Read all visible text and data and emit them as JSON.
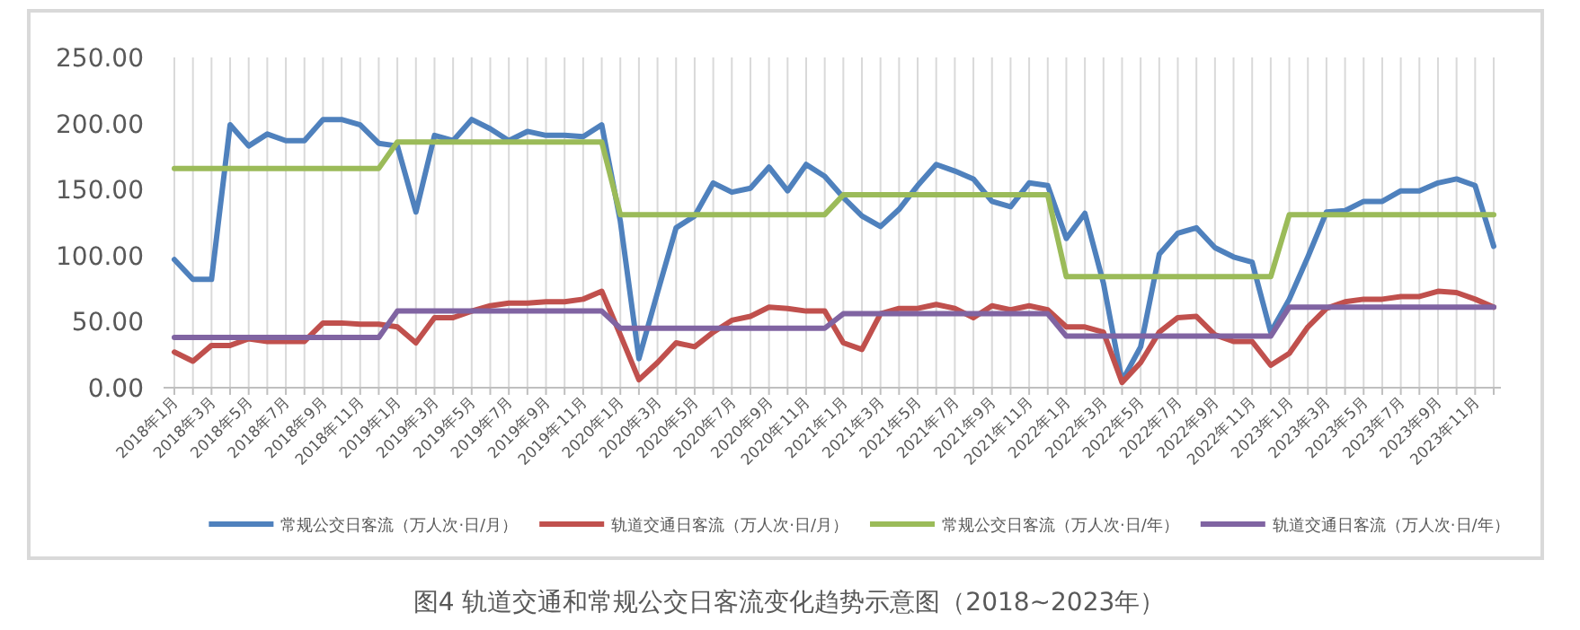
{
  "chart_data": {
    "type": "line",
    "title": "图4  轨道交通和常规公交日客流变化趋势示意图（2018~2023年）",
    "categories": [
      "2018年1月",
      null,
      "2018年3月",
      null,
      "2018年5月",
      null,
      "2018年7月",
      null,
      "2018年9月",
      null,
      "2018年11月",
      null,
      "2019年1月",
      null,
      "2019年3月",
      null,
      "2019年5月",
      null,
      "2019年7月",
      null,
      "2019年9月",
      null,
      "2019年11月",
      null,
      "2020年1月",
      null,
      "2020年3月",
      null,
      "2020年5月",
      null,
      "2020年7月",
      null,
      "2020年9月",
      null,
      "2020年11月",
      null,
      "2021年1月",
      null,
      "2021年3月",
      null,
      "2021年5月",
      null,
      "2021年7月",
      null,
      "2021年9月",
      null,
      "2021年11月",
      null,
      "2022年1月",
      null,
      "2022年3月",
      null,
      "2022年5月",
      null,
      "2022年7月",
      null,
      "2022年9月",
      null,
      "2022年11月",
      null,
      "2023年1月",
      null,
      "2023年3月",
      null,
      "2023年5月",
      null,
      "2023年7月",
      null,
      "2023年9月",
      null,
      "2023年11月",
      null
    ],
    "series": [
      {
        "name": "常规公交日客流（万人次·日/月）",
        "color": "#4f81bd",
        "values": [
          97,
          82,
          82,
          199,
          183,
          192,
          187,
          187,
          203,
          203,
          199,
          185,
          183,
          133,
          191,
          187,
          203,
          196,
          187,
          194,
          191,
          191,
          190,
          199,
          126,
          22,
          72,
          121,
          130,
          155,
          148,
          151,
          167,
          149,
          169,
          160,
          144,
          130,
          122,
          135,
          153,
          169,
          164,
          158,
          141,
          137,
          155,
          153,
          113,
          132,
          79,
          5,
          31,
          101,
          117,
          121,
          106,
          99,
          95,
          42,
          67,
          99,
          133,
          134,
          141,
          141,
          149,
          149,
          155,
          158,
          153,
          107
        ]
      },
      {
        "name": "轨道交通日客流（万人次·日/月）",
        "color": "#c0504d",
        "values": [
          27,
          20,
          32,
          32,
          37,
          35,
          35,
          35,
          49,
          49,
          48,
          48,
          46,
          34,
          53,
          53,
          58,
          62,
          64,
          64,
          65,
          65,
          67,
          73,
          40,
          6,
          19,
          34,
          31,
          42,
          51,
          54,
          61,
          60,
          58,
          58,
          34,
          29,
          56,
          60,
          60,
          63,
          60,
          53,
          62,
          59,
          62,
          59,
          46,
          46,
          42,
          4,
          19,
          42,
          53,
          54,
          40,
          35,
          35,
          17,
          26,
          46,
          60,
          65,
          67,
          67,
          69,
          69,
          73,
          72,
          67,
          61
        ]
      },
      {
        "name": "常规公交日客流（万人次·日/年）",
        "color": "#9bbb59",
        "values": [
          166,
          166,
          166,
          166,
          166,
          166,
          166,
          166,
          166,
          166,
          166,
          166,
          186,
          186,
          186,
          186,
          186,
          186,
          186,
          186,
          186,
          186,
          186,
          186,
          131,
          131,
          131,
          131,
          131,
          131,
          131,
          131,
          131,
          131,
          131,
          131,
          146,
          146,
          146,
          146,
          146,
          146,
          146,
          146,
          146,
          146,
          146,
          146,
          84,
          84,
          84,
          84,
          84,
          84,
          84,
          84,
          84,
          84,
          84,
          84,
          131,
          131,
          131,
          131,
          131,
          131,
          131,
          131,
          131,
          131,
          131,
          131
        ]
      },
      {
        "name": "轨道交通日客流（万人次·日/年）",
        "color": "#8064a2",
        "values": [
          38,
          38,
          38,
          38,
          38,
          38,
          38,
          38,
          38,
          38,
          38,
          38,
          58,
          58,
          58,
          58,
          58,
          58,
          58,
          58,
          58,
          58,
          58,
          58,
          45,
          45,
          45,
          45,
          45,
          45,
          45,
          45,
          45,
          45,
          45,
          45,
          56,
          56,
          56,
          56,
          56,
          56,
          56,
          56,
          56,
          56,
          56,
          56,
          39,
          39,
          39,
          39,
          39,
          39,
          39,
          39,
          39,
          39,
          39,
          39,
          61,
          61,
          61,
          61,
          61,
          61,
          61,
          61,
          61,
          61,
          61,
          61
        ]
      }
    ],
    "ylim": [
      0,
      250
    ],
    "yticks": [
      {
        "value": 0,
        "label": "0.00"
      },
      {
        "value": 50,
        "label": "50.00"
      },
      {
        "value": 100,
        "label": "100.00"
      },
      {
        "value": 150,
        "label": "150.00"
      },
      {
        "value": 200,
        "label": "200.00"
      },
      {
        "value": 250,
        "label": "250.00"
      }
    ],
    "grid": "x",
    "legend": "bottom",
    "marker": "none",
    "line_style": "solid"
  }
}
